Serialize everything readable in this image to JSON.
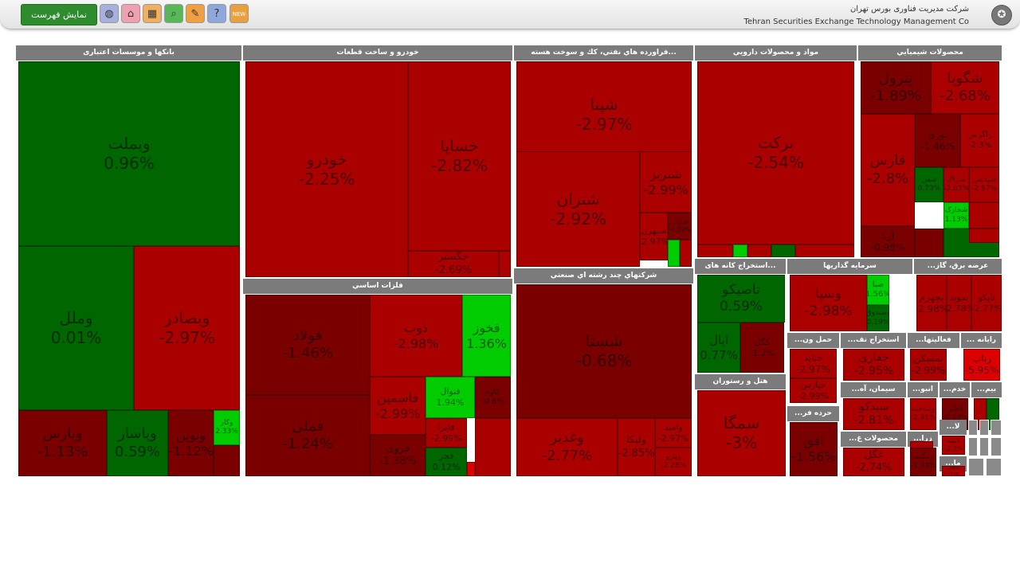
{
  "header": {
    "org_name_fa": "شرکت مدیریت فناوری بورس تهران",
    "org_name_en": "Tehran Securities Exchange Technology Management Co",
    "show_list_label": "نمایش فهرست",
    "logo_icon": "tse-logo-icon",
    "icons": [
      {
        "name": "new-icon",
        "glyph": "NEW",
        "bg": "#e8a040"
      },
      {
        "name": "help-icon",
        "glyph": "?",
        "bg": "#8fa8dc"
      },
      {
        "name": "chat-icon",
        "glyph": "✎",
        "bg": "#f0a040"
      },
      {
        "name": "search-icon",
        "glyph": "⌕",
        "bg": "#58b858"
      },
      {
        "name": "table-icon",
        "glyph": "▦",
        "bg": "#f0b060"
      },
      {
        "name": "home-icon",
        "glyph": "⌂",
        "bg": "#f0a0b0"
      },
      {
        "name": "globe-icon",
        "glyph": "◍",
        "bg": "#a8b0e0"
      }
    ]
  },
  "colors": {
    "strong_up": "#00cc00",
    "up": "#006600",
    "flat": "#7a0000",
    "down": "#aa0000",
    "strong_down": "#dd0000"
  },
  "sectors": [
    {
      "name": "بانکها و موسسات اعتباری",
      "cells": [
        {
          "symbol": "وبملت",
          "change": "0.96%"
        },
        {
          "symbol": "وملل",
          "change": "0.01%"
        },
        {
          "symbol": "وبصادر",
          "change": "-2.97%"
        },
        {
          "symbol": "وپارس",
          "change": "-1.13%"
        },
        {
          "symbol": "وپاسار",
          "change": "0.59%"
        },
        {
          "symbol": "ونوین",
          "change": "-1.12%"
        },
        {
          "symbol": "وکار",
          "change": "2.33%"
        }
      ]
    },
    {
      "name": "خودرو و ساخت قطعات",
      "cells": [
        {
          "symbol": "خودرو",
          "change": "-2.25%"
        },
        {
          "symbol": "خساپا",
          "change": "-2.82%"
        },
        {
          "symbol": "خگستر",
          "change": "-2.69%"
        }
      ]
    },
    {
      "name": "فراورده هاي نفتي، كك و سوخت هسته...",
      "cells": [
        {
          "symbol": "شپنا",
          "change": "-2.97%"
        },
        {
          "symbol": "شتران",
          "change": "-2.92%"
        },
        {
          "symbol": "شبریز",
          "change": "-2.99%"
        },
        {
          "symbol": "شبهرن",
          "change": "-2.97%"
        },
        {
          "symbol": "شاوان",
          "change": "-1.99%"
        }
      ]
    },
    {
      "name": "مواد و محصولات دارويي",
      "cells": [
        {
          "symbol": "برکت",
          "change": "-2.54%"
        }
      ]
    },
    {
      "name": "محصولات شيميايي",
      "cells": [
        {
          "symbol": "پترول",
          "change": "-1.89%"
        },
        {
          "symbol": "شگویا",
          "change": "-2.68%"
        },
        {
          "symbol": "فارس",
          "change": "-2.8%"
        },
        {
          "symbol": "نوری",
          "change": "-1.46%"
        },
        {
          "symbol": "زاگرس",
          "change": "-2.3%"
        },
        {
          "symbol": "شفن",
          "change": "0.73%"
        },
        {
          "symbol": "شاراک",
          "change": "-2.63%"
        },
        {
          "symbol": "شپدیس",
          "change": "-2.97%"
        },
        {
          "symbol": "شخارک",
          "change": "1.13%"
        },
        {
          "symbol": "آریا",
          "change": "-0.98%"
        }
      ]
    },
    {
      "name": "فلزات اساسي",
      "cells": [
        {
          "symbol": "فولاد",
          "change": "-1.46%"
        },
        {
          "symbol": "فملی",
          "change": "-1.24%"
        },
        {
          "symbol": "ذوب",
          "change": "-2.98%"
        },
        {
          "symbol": "فخوز",
          "change": "1.36%"
        },
        {
          "symbol": "فاسمین",
          "change": "-2.99%"
        },
        {
          "symbol": "فنوال",
          "change": "1.94%"
        },
        {
          "symbol": "کاوه",
          "change": "-0.6%"
        },
        {
          "symbol": "فروی",
          "change": "-1.38%"
        },
        {
          "symbol": "فایرا",
          "change": "-2.99%"
        },
        {
          "symbol": "فجر",
          "change": "0.12%"
        }
      ]
    },
    {
      "name": "شرکتهاي چند رشته اي صنعتي",
      "cells": [
        {
          "symbol": "شستا",
          "change": "-0.68%"
        },
        {
          "symbol": "وغدیر",
          "change": "-2.77%"
        },
        {
          "symbol": "ولیکا",
          "change": "-2.85%"
        },
        {
          "symbol": "وامید",
          "change": "-2.97%"
        },
        {
          "symbol": "وپترو",
          "change": "-2.28%"
        }
      ]
    },
    {
      "name": "استخراج کانه های...",
      "cells": [
        {
          "symbol": "تاصیکو",
          "change": "0.59%"
        },
        {
          "symbol": "اپال",
          "change": "0.77%"
        },
        {
          "symbol": "کگل",
          "change": "-1.2%"
        }
      ]
    },
    {
      "name": "سرمايه گذاريها",
      "cells": [
        {
          "symbol": "وسپا",
          "change": "-2.98%"
        },
        {
          "symbol": "صبا",
          "change": "1.56%"
        },
        {
          "symbol": "وصندوق",
          "change": "0.19%"
        }
      ]
    },
    {
      "name": "...عرضه برق، گاز",
      "cells": [
        {
          "symbol": "بجهرم",
          "change": "-2.98%"
        },
        {
          "symbol": "بموند",
          "change": "-2.78%"
        },
        {
          "symbol": "تاپکو",
          "change": "-2.77%"
        }
      ]
    },
    {
      "name": "هتل و رستوران",
      "cells": [
        {
          "symbol": "سمگا",
          "change": "-3%"
        }
      ]
    },
    {
      "name": "...حمل ون",
      "cells": [
        {
          "symbol": "حتاید",
          "change": "-2.97%"
        },
        {
          "symbol": "حپارس",
          "change": "-2.99%"
        }
      ]
    },
    {
      "name": "...استخراج نف",
      "cells": [
        {
          "symbol": "حفاری",
          "change": "-2.95%"
        }
      ]
    },
    {
      "name": "...فعالیتها",
      "cells": [
        {
          "symbol": "ثمسکن",
          "change": "-2.99%"
        }
      ]
    },
    {
      "name": "... رايانه",
      "cells": [
        {
          "symbol": "رتاپ",
          "change": "-5.95%"
        }
      ]
    },
    {
      "name": "...سیمان، آه",
      "cells": [
        {
          "symbol": "سیدکو",
          "change": "-2.81%"
        }
      ]
    },
    {
      "name": "...انبو",
      "cells": [
        {
          "symbol": "وساخت",
          "change": "-2.91%"
        }
      ]
    },
    {
      "name": "...خدم",
      "cells": [
        {
          "symbol": "اخابر",
          "change": "-0.68%"
        }
      ]
    },
    {
      "name": "...بیم",
      "cells": []
    },
    {
      "name": "...حرده فر",
      "cells": [
        {
          "symbol": "افق",
          "change": "-1.56%"
        }
      ]
    },
    {
      "name": "...محصولات غ",
      "cells": [
        {
          "symbol": "غگل",
          "change": "-2.74%"
        }
      ]
    },
    {
      "name": "...زرا",
      "cells": [
        {
          "symbol": "زمگسا",
          "change": "-1.98%"
        }
      ]
    },
    {
      "name": "...لا",
      "cells": [
        {
          "symbol": "لابسا",
          "change": "-2.3%"
        }
      ]
    },
    {
      "name": "...ما",
      "cells": [
        {
          "symbol": "ماهان",
          "change": "-2%"
        }
      ]
    }
  ]
}
